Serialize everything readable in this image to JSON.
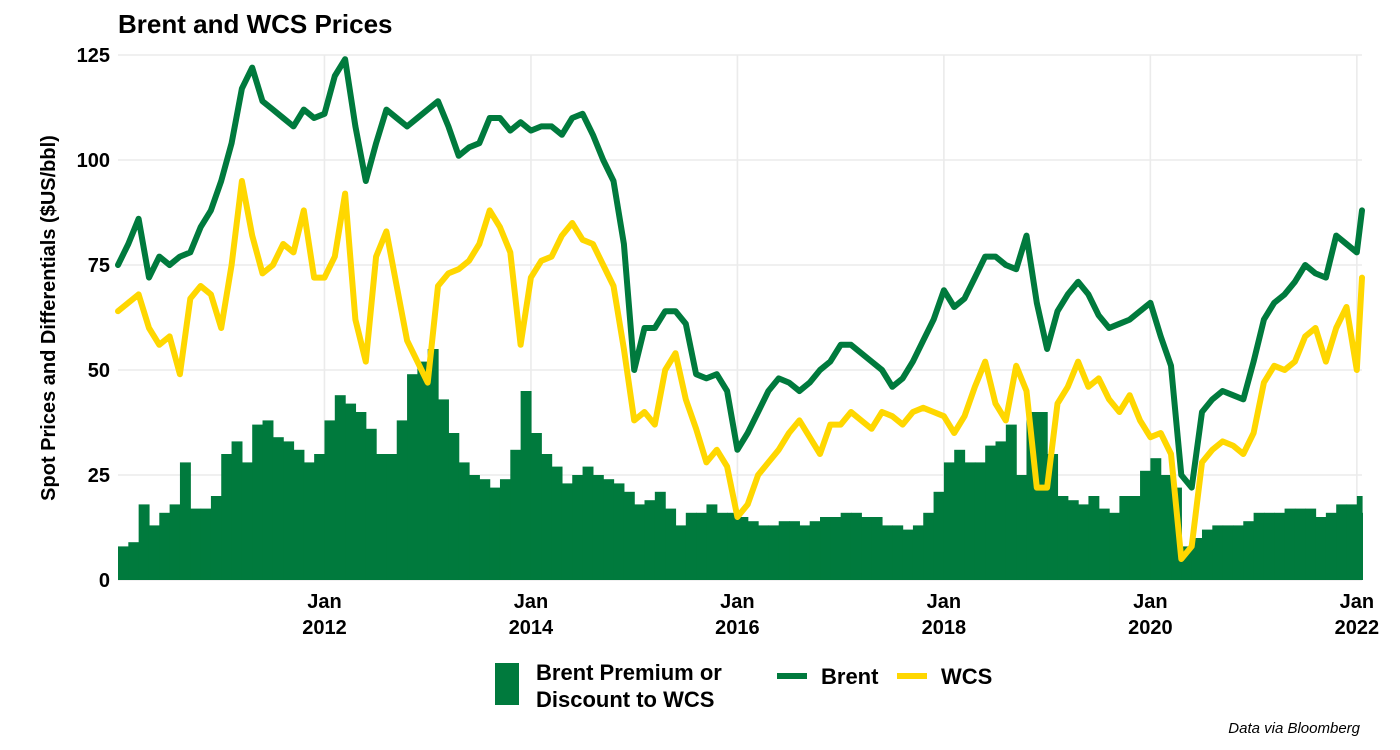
{
  "colors": {
    "brent": "#007A3D",
    "wcs": "#FFD700",
    "premium": "#007A3D",
    "grid": "#EBEBEB",
    "text": "#000000"
  },
  "chart_data": {
    "type": "line",
    "title": "Brent and WCS Prices",
    "ylabel": "Spot Prices and Differentials ($US/bbl)",
    "xlabel": "",
    "caption": "Data via Bloomberg",
    "ylim": [
      0,
      125
    ],
    "xlim": [
      2010.0,
      2022.05
    ],
    "yticks": [
      {
        "value": 0,
        "label": "0"
      },
      {
        "value": 25,
        "label": "25"
      },
      {
        "value": 50,
        "label": "50"
      },
      {
        "value": 75,
        "label": "75"
      },
      {
        "value": 100,
        "label": "100"
      },
      {
        "value": 125,
        "label": "125"
      }
    ],
    "xticks": [
      {
        "value": 2012,
        "month": "Jan",
        "year": "2012"
      },
      {
        "value": 2014,
        "month": "Jan",
        "year": "2014"
      },
      {
        "value": 2016,
        "month": "Jan",
        "year": "2016"
      },
      {
        "value": 2018,
        "month": "Jan",
        "year": "2018"
      },
      {
        "value": 2020,
        "month": "Jan",
        "year": "2020"
      },
      {
        "value": 2022,
        "month": "Jan",
        "year": "2022"
      }
    ],
    "legend": {
      "position": "bottom",
      "premium_line1": "Brent Premium or",
      "premium_line2": "Discount to WCS",
      "brent": "Brent",
      "wcs": "WCS"
    },
    "x": [
      2010.0,
      2010.1,
      2010.2,
      2010.3,
      2010.4,
      2010.5,
      2010.6,
      2010.7,
      2010.8,
      2010.9,
      2011.0,
      2011.1,
      2011.2,
      2011.3,
      2011.4,
      2011.5,
      2011.6,
      2011.7,
      2011.8,
      2011.9,
      2012.0,
      2012.1,
      2012.2,
      2012.3,
      2012.4,
      2012.5,
      2012.6,
      2012.7,
      2012.8,
      2012.9,
      2013.0,
      2013.1,
      2013.2,
      2013.3,
      2013.4,
      2013.5,
      2013.6,
      2013.7,
      2013.8,
      2013.9,
      2014.0,
      2014.1,
      2014.2,
      2014.3,
      2014.4,
      2014.5,
      2014.6,
      2014.7,
      2014.8,
      2014.9,
      2015.0,
      2015.1,
      2015.2,
      2015.3,
      2015.4,
      2015.5,
      2015.6,
      2015.7,
      2015.8,
      2015.9,
      2016.0,
      2016.1,
      2016.2,
      2016.3,
      2016.4,
      2016.5,
      2016.6,
      2016.7,
      2016.8,
      2016.9,
      2017.0,
      2017.1,
      2017.2,
      2017.3,
      2017.4,
      2017.5,
      2017.6,
      2017.7,
      2017.8,
      2017.9,
      2018.0,
      2018.1,
      2018.2,
      2018.3,
      2018.4,
      2018.5,
      2018.6,
      2018.7,
      2018.8,
      2018.9,
      2019.0,
      2019.1,
      2019.2,
      2019.3,
      2019.4,
      2019.5,
      2019.6,
      2019.7,
      2019.8,
      2019.9,
      2020.0,
      2020.1,
      2020.2,
      2020.3,
      2020.4,
      2020.5,
      2020.6,
      2020.7,
      2020.8,
      2020.9,
      2021.0,
      2021.1,
      2021.2,
      2021.3,
      2021.4,
      2021.5,
      2021.6,
      2021.7,
      2021.8,
      2021.9,
      2022.0,
      2022.05
    ],
    "series": [
      {
        "name": "Brent",
        "values": [
          75,
          80,
          86,
          72,
          77,
          75,
          77,
          78,
          84,
          88,
          95,
          104,
          117,
          122,
          114,
          112,
          110,
          108,
          112,
          110,
          111,
          120,
          124,
          108,
          95,
          104,
          112,
          110,
          108,
          110,
          112,
          114,
          108,
          101,
          103,
          104,
          110,
          110,
          107,
          109,
          107,
          108,
          108,
          106,
          110,
          111,
          106,
          100,
          95,
          80,
          50,
          60,
          60,
          64,
          64,
          61,
          49,
          48,
          49,
          45,
          31,
          35,
          40,
          45,
          48,
          47,
          45,
          47,
          50,
          52,
          56,
          56,
          54,
          52,
          50,
          46,
          48,
          52,
          57,
          62,
          69,
          65,
          67,
          72,
          77,
          77,
          75,
          74,
          82,
          66,
          55,
          64,
          68,
          71,
          68,
          63,
          60,
          61,
          62,
          64,
          66,
          58,
          51,
          25,
          22,
          40,
          43,
          45,
          44,
          43,
          52,
          62,
          66,
          68,
          71,
          75,
          73,
          72,
          82,
          80,
          78,
          88
        ]
      },
      {
        "name": "WCS",
        "values": [
          64,
          66,
          68,
          60,
          56,
          58,
          49,
          67,
          70,
          68,
          60,
          75,
          95,
          82,
          73,
          75,
          80,
          78,
          88,
          72,
          72,
          77,
          92,
          62,
          52,
          77,
          83,
          70,
          57,
          52,
          47,
          70,
          73,
          74,
          76,
          80,
          88,
          84,
          78,
          56,
          72,
          76,
          77,
          82,
          85,
          81,
          80,
          75,
          70,
          55,
          38,
          40,
          37,
          50,
          54,
          43,
          36,
          28,
          31,
          27,
          15,
          18,
          25,
          28,
          31,
          35,
          38,
          34,
          30,
          37,
          37,
          40,
          38,
          36,
          40,
          39,
          37,
          40,
          41,
          40,
          39,
          35,
          39,
          46,
          52,
          42,
          38,
          51,
          45,
          22,
          22,
          42,
          46,
          52,
          46,
          48,
          43,
          40,
          44,
          38,
          34,
          35,
          30,
          5,
          8,
          28,
          31,
          33,
          32,
          30,
          35,
          47,
          51,
          50,
          52,
          58,
          60,
          52,
          60,
          65,
          50,
          72
        ]
      },
      {
        "name": "Brent Premium or Discount to WCS",
        "values": [
          8,
          9,
          18,
          13,
          16,
          18,
          28,
          17,
          17,
          20,
          30,
          33,
          28,
          37,
          38,
          34,
          33,
          31,
          28,
          30,
          38,
          44,
          42,
          40,
          36,
          30,
          30,
          38,
          49,
          52,
          55,
          43,
          35,
          28,
          25,
          24,
          22,
          24,
          31,
          45,
          35,
          30,
          27,
          23,
          25,
          27,
          25,
          24,
          23,
          21,
          18,
          19,
          21,
          17,
          13,
          16,
          16,
          18,
          16,
          16,
          15,
          14,
          13,
          13,
          14,
          14,
          13,
          14,
          15,
          15,
          16,
          16,
          15,
          15,
          13,
          13,
          12,
          13,
          16,
          21,
          28,
          31,
          28,
          28,
          32,
          33,
          37,
          25,
          40,
          40,
          30,
          20,
          19,
          18,
          20,
          17,
          16,
          20,
          20,
          26,
          29,
          25,
          22,
          8,
          10,
          12,
          13,
          13,
          13,
          14,
          16,
          16,
          16,
          17,
          17,
          17,
          15,
          16,
          18,
          18,
          20,
          16
        ]
      }
    ]
  }
}
